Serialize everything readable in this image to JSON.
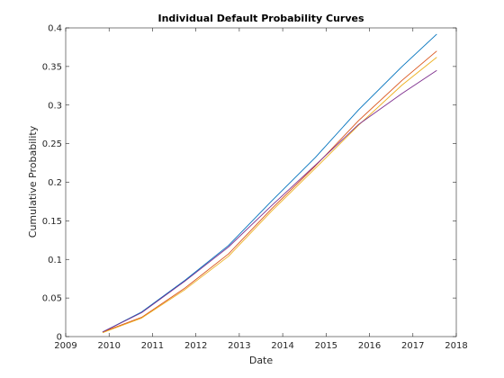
{
  "chart_data": {
    "type": "line",
    "title": "Individual Default Probability Curves",
    "xlabel": "Date",
    "ylabel": "Cumulative Probability",
    "xlim": [
      2009,
      2018
    ],
    "ylim": [
      0,
      0.4
    ],
    "xticks": [
      "2009",
      "2010",
      "2011",
      "2012",
      "2013",
      "2014",
      "2015",
      "2016",
      "2017",
      "2018"
    ],
    "yticks": [
      "0",
      "0.05",
      "0.1",
      "0.15",
      "0.2",
      "0.25",
      "0.3",
      "0.35",
      "0.4"
    ],
    "grid": false,
    "legend": false,
    "series": [
      {
        "color": "#0072BD",
        "x": [
          2009.85,
          2010.75,
          2011.75,
          2012.75,
          2013.75,
          2014.75,
          2015.75,
          2016.75,
          2017.55
        ],
        "y": [
          0.006,
          0.032,
          0.073,
          0.118,
          0.176,
          0.232,
          0.294,
          0.35,
          0.392
        ]
      },
      {
        "color": "#D95319",
        "x": [
          2009.85,
          2010.75,
          2011.75,
          2012.75,
          2013.75,
          2014.75,
          2015.75,
          2016.75,
          2017.55
        ],
        "y": [
          0.006,
          0.025,
          0.063,
          0.107,
          0.166,
          0.221,
          0.28,
          0.332,
          0.37
        ]
      },
      {
        "color": "#EDB120",
        "x": [
          2009.85,
          2010.75,
          2011.75,
          2012.75,
          2013.75,
          2014.75,
          2015.75,
          2016.75,
          2017.55
        ],
        "y": [
          0.005,
          0.024,
          0.061,
          0.104,
          0.163,
          0.218,
          0.274,
          0.326,
          0.362
        ]
      },
      {
        "color": "#7E2F8E",
        "x": [
          2009.85,
          2010.75,
          2011.75,
          2012.75,
          2013.75,
          2014.75,
          2015.75,
          2016.75,
          2017.55
        ],
        "y": [
          0.006,
          0.031,
          0.072,
          0.116,
          0.17,
          0.222,
          0.275,
          0.315,
          0.345
        ]
      }
    ]
  }
}
